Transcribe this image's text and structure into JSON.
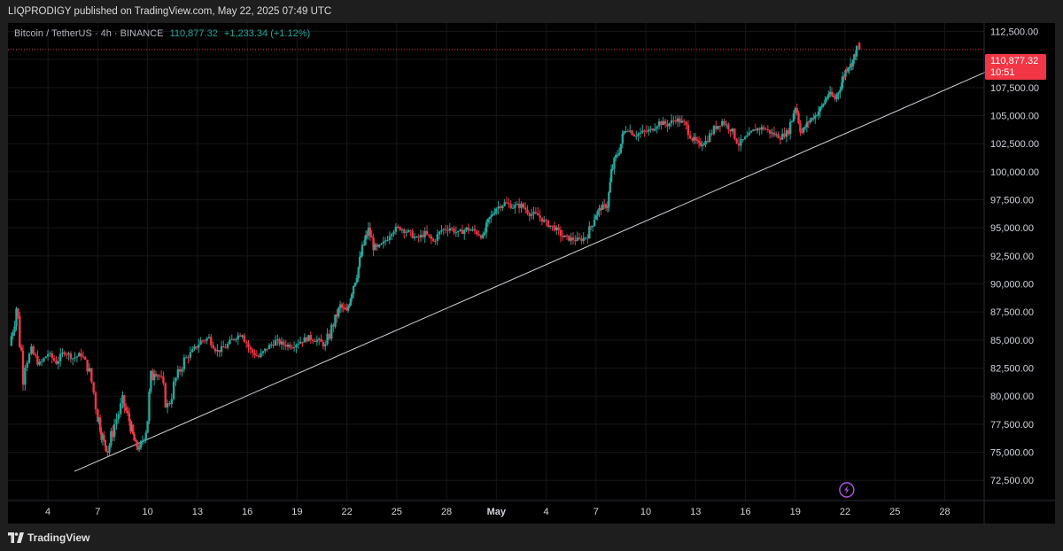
{
  "header": {
    "publish_info": "LIQPRODIGY published on TradingView.com, May 22, 2025 07:49 UTC"
  },
  "legend": {
    "symbol": "Bitcoin / TetherUS · 4h · BINANCE",
    "last_price": "110,877.32",
    "change": "+1,233.34 (+1.12%)"
  },
  "price_label": {
    "price": "110,877.32",
    "countdown": "10:51"
  },
  "footer": {
    "brand": "TradingView"
  },
  "colors": {
    "up": "#26a69a",
    "down": "#f23645",
    "background": "#000000",
    "trendline": "#d1d4dc",
    "event_marker": "#b056e8"
  },
  "icons": {
    "event_marker": "lightning-icon",
    "brand": "tradingview-logo-icon"
  },
  "chart_data": {
    "type": "candlestick",
    "interval": "4h",
    "x_axis": {
      "ticks": [
        "4",
        "7",
        "10",
        "13",
        "16",
        "19",
        "22",
        "25",
        "28",
        "May",
        "4",
        "7",
        "10",
        "13",
        "16",
        "19",
        "22",
        "25",
        "28"
      ],
      "tick_days": [
        4,
        7,
        10,
        13,
        16,
        19,
        22,
        25,
        28,
        31,
        34,
        37,
        40,
        43,
        46,
        49,
        52,
        55,
        58
      ],
      "bold_ticks": [
        "May"
      ],
      "day_range": [
        1.7,
        60.8
      ]
    },
    "y_axis": {
      "ticks": [
        "72,500.00",
        "75,000.00",
        "77,500.00",
        "80,000.00",
        "82,500.00",
        "85,000.00",
        "87,500.00",
        "90,000.00",
        "92,500.00",
        "95,000.00",
        "97,500.00",
        "100,000.00",
        "102,500.00",
        "105,000.00",
        "107,500.00",
        "110,000.00",
        "112,500.00"
      ],
      "tick_values": [
        72500,
        75000,
        77500,
        80000,
        82500,
        85000,
        87500,
        90000,
        92500,
        95000,
        97500,
        100000,
        102500,
        105000,
        107500,
        110000,
        112500
      ],
      "ylim": [
        70700,
        113250
      ],
      "side": "right"
    },
    "current_price": 110877.32,
    "trendline": {
      "from": [
        5.6,
        73300
      ],
      "to": [
        60.8,
        109100
      ]
    },
    "event_marker_day": 52.1,
    "series": [
      {
        "d": 1.7,
        "c": 84500
      },
      {
        "d": 2.1,
        "c": 88000
      },
      {
        "d": 2.5,
        "c": 82500
      },
      {
        "d": 3.0,
        "c": 84000
      },
      {
        "d": 3.5,
        "c": 82800
      },
      {
        "d": 4.0,
        "c": 83800
      },
      {
        "d": 4.5,
        "c": 83000
      },
      {
        "d": 5.0,
        "c": 84000
      },
      {
        "d": 5.5,
        "c": 83400
      },
      {
        "d": 6.0,
        "c": 83700
      },
      {
        "d": 6.5,
        "c": 82200
      },
      {
        "d": 7.0,
        "c": 78500
      },
      {
        "d": 7.3,
        "c": 76200
      },
      {
        "d": 7.6,
        "c": 75100
      },
      {
        "d": 8.0,
        "c": 77500
      },
      {
        "d": 8.5,
        "c": 79500
      },
      {
        "d": 8.9,
        "c": 77800
      },
      {
        "d": 9.2,
        "c": 76000
      },
      {
        "d": 9.5,
        "c": 75200
      },
      {
        "d": 9.9,
        "c": 77000
      },
      {
        "d": 10.3,
        "c": 82300
      },
      {
        "d": 10.7,
        "c": 81800
      },
      {
        "d": 11.2,
        "c": 79000
      },
      {
        "d": 11.7,
        "c": 81500
      },
      {
        "d": 12.2,
        "c": 83200
      },
      {
        "d": 12.7,
        "c": 84000
      },
      {
        "d": 13.2,
        "c": 84900
      },
      {
        "d": 13.7,
        "c": 85200
      },
      {
        "d": 14.2,
        "c": 84000
      },
      {
        "d": 14.7,
        "c": 84400
      },
      {
        "d": 15.2,
        "c": 85200
      },
      {
        "d": 15.7,
        "c": 85600
      },
      {
        "d": 16.2,
        "c": 84000
      },
      {
        "d": 16.7,
        "c": 83500
      },
      {
        "d": 17.2,
        "c": 84300
      },
      {
        "d": 17.7,
        "c": 84900
      },
      {
        "d": 18.2,
        "c": 84600
      },
      {
        "d": 18.7,
        "c": 84500
      },
      {
        "d": 19.2,
        "c": 84900
      },
      {
        "d": 19.7,
        "c": 85200
      },
      {
        "d": 20.2,
        "c": 85000
      },
      {
        "d": 20.7,
        "c": 84500
      },
      {
        "d": 21.2,
        "c": 86500
      },
      {
        "d": 21.6,
        "c": 88000
      },
      {
        "d": 22.0,
        "c": 87500
      },
      {
        "d": 22.3,
        "c": 89500
      },
      {
        "d": 22.7,
        "c": 91500
      },
      {
        "d": 23.0,
        "c": 93500
      },
      {
        "d": 23.3,
        "c": 94800
      },
      {
        "d": 23.7,
        "c": 93000
      },
      {
        "d": 24.2,
        "c": 93600
      },
      {
        "d": 24.7,
        "c": 94800
      },
      {
        "d": 25.2,
        "c": 95000
      },
      {
        "d": 25.7,
        "c": 94600
      },
      {
        "d": 26.2,
        "c": 94000
      },
      {
        "d": 26.7,
        "c": 94500
      },
      {
        "d": 27.2,
        "c": 93800
      },
      {
        "d": 27.7,
        "c": 94800
      },
      {
        "d": 28.2,
        "c": 95000
      },
      {
        "d": 28.7,
        "c": 94500
      },
      {
        "d": 29.2,
        "c": 94900
      },
      {
        "d": 29.7,
        "c": 94700
      },
      {
        "d": 30.2,
        "c": 94200
      },
      {
        "d": 30.6,
        "c": 95800
      },
      {
        "d": 31.0,
        "c": 96800
      },
      {
        "d": 31.5,
        "c": 97200
      },
      {
        "d": 32.0,
        "c": 96900
      },
      {
        "d": 32.5,
        "c": 97000
      },
      {
        "d": 33.0,
        "c": 96300
      },
      {
        "d": 33.5,
        "c": 96100
      },
      {
        "d": 34.0,
        "c": 95400
      },
      {
        "d": 34.5,
        "c": 95000
      },
      {
        "d": 35.0,
        "c": 94200
      },
      {
        "d": 35.5,
        "c": 94000
      },
      {
        "d": 36.0,
        "c": 93900
      },
      {
        "d": 36.5,
        "c": 94300
      },
      {
        "d": 36.9,
        "c": 96000
      },
      {
        "d": 37.3,
        "c": 96800
      },
      {
        "d": 37.7,
        "c": 97000
      },
      {
        "d": 38.0,
        "c": 100500
      },
      {
        "d": 38.4,
        "c": 102000
      },
      {
        "d": 38.8,
        "c": 104000
      },
      {
        "d": 39.3,
        "c": 103300
      },
      {
        "d": 39.8,
        "c": 103500
      },
      {
        "d": 40.3,
        "c": 103700
      },
      {
        "d": 40.8,
        "c": 104400
      },
      {
        "d": 41.3,
        "c": 104200
      },
      {
        "d": 41.8,
        "c": 104700
      },
      {
        "d": 42.3,
        "c": 104300
      },
      {
        "d": 42.8,
        "c": 103000
      },
      {
        "d": 43.2,
        "c": 102400
      },
      {
        "d": 43.6,
        "c": 102700
      },
      {
        "d": 44.1,
        "c": 103800
      },
      {
        "d": 44.6,
        "c": 104500
      },
      {
        "d": 45.1,
        "c": 103800
      },
      {
        "d": 45.6,
        "c": 102500
      },
      {
        "d": 46.1,
        "c": 103100
      },
      {
        "d": 46.6,
        "c": 103800
      },
      {
        "d": 47.1,
        "c": 103900
      },
      {
        "d": 47.6,
        "c": 103400
      },
      {
        "d": 48.1,
        "c": 103100
      },
      {
        "d": 48.6,
        "c": 103600
      },
      {
        "d": 49.0,
        "c": 106000
      },
      {
        "d": 49.4,
        "c": 103500
      },
      {
        "d": 49.8,
        "c": 104500
      },
      {
        "d": 50.2,
        "c": 105000
      },
      {
        "d": 50.6,
        "c": 105800
      },
      {
        "d": 51.0,
        "c": 107000
      },
      {
        "d": 51.4,
        "c": 106500
      },
      {
        "d": 51.8,
        "c": 108000
      },
      {
        "d": 52.1,
        "c": 109300
      },
      {
        "d": 52.4,
        "c": 109600
      },
      {
        "d": 52.7,
        "c": 110877
      }
    ]
  }
}
